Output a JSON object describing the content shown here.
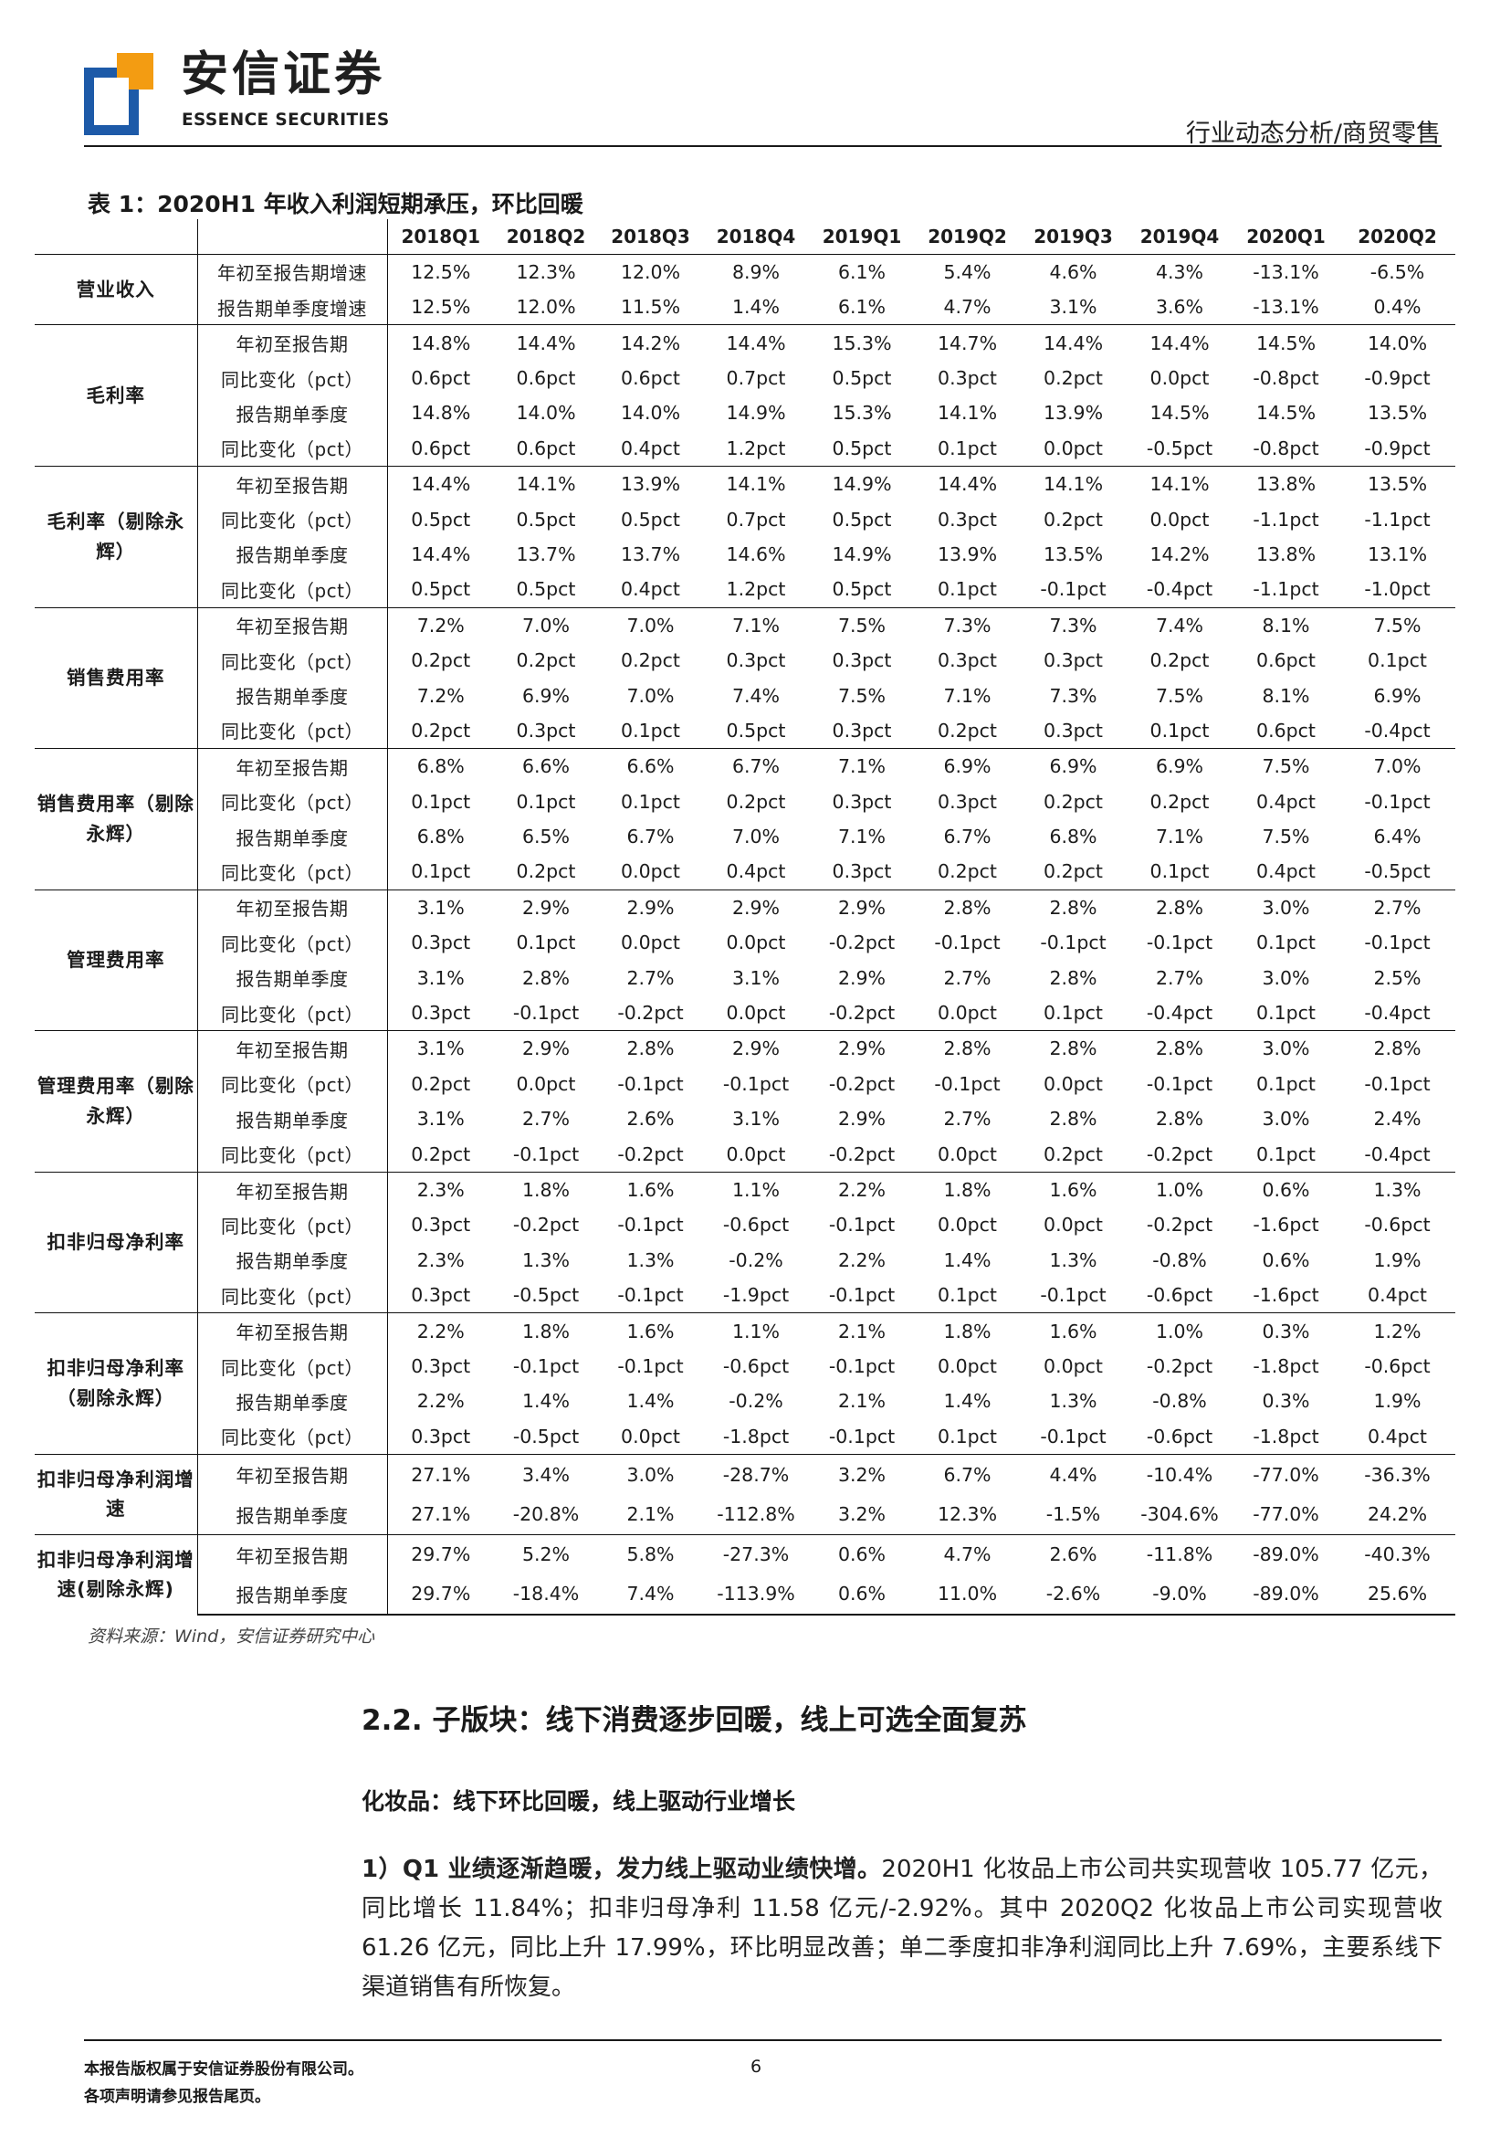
{
  "header": {
    "brand_cn": "安信证券",
    "brand_en": "ESSENCE SECURITIES",
    "report_type": "行业动态分析/商贸零售",
    "brand_colors": {
      "orange": "#f39c12",
      "blue": "#1d5aa8"
    }
  },
  "table": {
    "title": "表 1：2020H1 年收入利润短期承压，环比回暖",
    "columns": [
      "2018Q1",
      "2018Q2",
      "2018Q3",
      "2018Q4",
      "2019Q1",
      "2019Q2",
      "2019Q3",
      "2019Q4",
      "2020Q1",
      "2020Q2"
    ],
    "groups": [
      {
        "metric": "营业收入",
        "rows": [
          {
            "label": "年初至报告期增速",
            "values": [
              "12.5%",
              "12.3%",
              "12.0%",
              "8.9%",
              "6.1%",
              "5.4%",
              "4.6%",
              "4.3%",
              "-13.1%",
              "-6.5%"
            ]
          },
          {
            "label": "报告期单季度增速",
            "values": [
              "12.5%",
              "12.0%",
              "11.5%",
              "1.4%",
              "6.1%",
              "4.7%",
              "3.1%",
              "3.6%",
              "-13.1%",
              "0.4%"
            ]
          }
        ]
      },
      {
        "metric": "毛利率",
        "rows": [
          {
            "label": "年初至报告期",
            "values": [
              "14.8%",
              "14.4%",
              "14.2%",
              "14.4%",
              "15.3%",
              "14.7%",
              "14.4%",
              "14.4%",
              "14.5%",
              "14.0%"
            ]
          },
          {
            "label": "同比变化（pct）",
            "values": [
              "0.6pct",
              "0.6pct",
              "0.6pct",
              "0.7pct",
              "0.5pct",
              "0.3pct",
              "0.2pct",
              "0.0pct",
              "-0.8pct",
              "-0.9pct"
            ]
          },
          {
            "label": "报告期单季度",
            "values": [
              "14.8%",
              "14.0%",
              "14.0%",
              "14.9%",
              "15.3%",
              "14.1%",
              "13.9%",
              "14.5%",
              "14.5%",
              "13.5%"
            ]
          },
          {
            "label": "同比变化（pct）",
            "values": [
              "0.6pct",
              "0.6pct",
              "0.4pct",
              "1.2pct",
              "0.5pct",
              "0.1pct",
              "0.0pct",
              "-0.5pct",
              "-0.8pct",
              "-0.9pct"
            ]
          }
        ]
      },
      {
        "metric": "毛利率（剔除永辉）",
        "rows": [
          {
            "label": "年初至报告期",
            "values": [
              "14.4%",
              "14.1%",
              "13.9%",
              "14.1%",
              "14.9%",
              "14.4%",
              "14.1%",
              "14.1%",
              "13.8%",
              "13.5%"
            ]
          },
          {
            "label": "同比变化（pct）",
            "values": [
              "0.5pct",
              "0.5pct",
              "0.5pct",
              "0.7pct",
              "0.5pct",
              "0.3pct",
              "0.2pct",
              "0.0pct",
              "-1.1pct",
              "-1.1pct"
            ]
          },
          {
            "label": "报告期单季度",
            "values": [
              "14.4%",
              "13.7%",
              "13.7%",
              "14.6%",
              "14.9%",
              "13.9%",
              "13.5%",
              "14.2%",
              "13.8%",
              "13.1%"
            ]
          },
          {
            "label": "同比变化（pct）",
            "values": [
              "0.5pct",
              "0.5pct",
              "0.4pct",
              "1.2pct",
              "0.5pct",
              "0.1pct",
              "-0.1pct",
              "-0.4pct",
              "-1.1pct",
              "-1.0pct"
            ]
          }
        ]
      },
      {
        "metric": "销售费用率",
        "rows": [
          {
            "label": "年初至报告期",
            "values": [
              "7.2%",
              "7.0%",
              "7.0%",
              "7.1%",
              "7.5%",
              "7.3%",
              "7.3%",
              "7.4%",
              "8.1%",
              "7.5%"
            ]
          },
          {
            "label": "同比变化（pct）",
            "values": [
              "0.2pct",
              "0.2pct",
              "0.2pct",
              "0.3pct",
              "0.3pct",
              "0.3pct",
              "0.3pct",
              "0.2pct",
              "0.6pct",
              "0.1pct"
            ]
          },
          {
            "label": "报告期单季度",
            "values": [
              "7.2%",
              "6.9%",
              "7.0%",
              "7.4%",
              "7.5%",
              "7.1%",
              "7.3%",
              "7.5%",
              "8.1%",
              "6.9%"
            ]
          },
          {
            "label": "同比变化（pct）",
            "values": [
              "0.2pct",
              "0.3pct",
              "0.1pct",
              "0.5pct",
              "0.3pct",
              "0.2pct",
              "0.3pct",
              "0.1pct",
              "0.6pct",
              "-0.4pct"
            ]
          }
        ]
      },
      {
        "metric": "销售费用率（剔除永辉）",
        "rows": [
          {
            "label": "年初至报告期",
            "values": [
              "6.8%",
              "6.6%",
              "6.6%",
              "6.7%",
              "7.1%",
              "6.9%",
              "6.9%",
              "6.9%",
              "7.5%",
              "7.0%"
            ]
          },
          {
            "label": "同比变化（pct）",
            "values": [
              "0.1pct",
              "0.1pct",
              "0.1pct",
              "0.2pct",
              "0.3pct",
              "0.3pct",
              "0.2pct",
              "0.2pct",
              "0.4pct",
              "-0.1pct"
            ]
          },
          {
            "label": "报告期单季度",
            "values": [
              "6.8%",
              "6.5%",
              "6.7%",
              "7.0%",
              "7.1%",
              "6.7%",
              "6.8%",
              "7.1%",
              "7.5%",
              "6.4%"
            ]
          },
          {
            "label": "同比变化（pct）",
            "values": [
              "0.1pct",
              "0.2pct",
              "0.0pct",
              "0.4pct",
              "0.3pct",
              "0.2pct",
              "0.2pct",
              "0.1pct",
              "0.4pct",
              "-0.5pct"
            ]
          }
        ]
      },
      {
        "metric": "管理费用率",
        "rows": [
          {
            "label": "年初至报告期",
            "values": [
              "3.1%",
              "2.9%",
              "2.9%",
              "2.9%",
              "2.9%",
              "2.8%",
              "2.8%",
              "2.8%",
              "3.0%",
              "2.7%"
            ]
          },
          {
            "label": "同比变化（pct）",
            "values": [
              "0.3pct",
              "0.1pct",
              "0.0pct",
              "0.0pct",
              "-0.2pct",
              "-0.1pct",
              "-0.1pct",
              "-0.1pct",
              "0.1pct",
              "-0.1pct"
            ]
          },
          {
            "label": "报告期单季度",
            "values": [
              "3.1%",
              "2.8%",
              "2.7%",
              "3.1%",
              "2.9%",
              "2.7%",
              "2.8%",
              "2.7%",
              "3.0%",
              "2.5%"
            ]
          },
          {
            "label": "同比变化（pct）",
            "values": [
              "0.3pct",
              "-0.1pct",
              "-0.2pct",
              "0.0pct",
              "-0.2pct",
              "0.0pct",
              "0.1pct",
              "-0.4pct",
              "0.1pct",
              "-0.4pct"
            ]
          }
        ]
      },
      {
        "metric": "管理费用率（剔除永辉）",
        "rows": [
          {
            "label": "年初至报告期",
            "values": [
              "3.1%",
              "2.9%",
              "2.8%",
              "2.9%",
              "2.9%",
              "2.8%",
              "2.8%",
              "2.8%",
              "3.0%",
              "2.8%"
            ]
          },
          {
            "label": "同比变化（pct）",
            "values": [
              "0.2pct",
              "0.0pct",
              "-0.1pct",
              "-0.1pct",
              "-0.2pct",
              "-0.1pct",
              "0.0pct",
              "-0.1pct",
              "0.1pct",
              "-0.1pct"
            ]
          },
          {
            "label": "报告期单季度",
            "values": [
              "3.1%",
              "2.7%",
              "2.6%",
              "3.1%",
              "2.9%",
              "2.7%",
              "2.8%",
              "2.8%",
              "3.0%",
              "2.4%"
            ]
          },
          {
            "label": "同比变化（pct）",
            "values": [
              "0.2pct",
              "-0.1pct",
              "-0.2pct",
              "0.0pct",
              "-0.2pct",
              "0.0pct",
              "0.2pct",
              "-0.2pct",
              "0.1pct",
              "-0.4pct"
            ]
          }
        ]
      },
      {
        "metric": "扣非归母净利率",
        "rows": [
          {
            "label": "年初至报告期",
            "values": [
              "2.3%",
              "1.8%",
              "1.6%",
              "1.1%",
              "2.2%",
              "1.8%",
              "1.6%",
              "1.0%",
              "0.6%",
              "1.3%"
            ]
          },
          {
            "label": "同比变化（pct）",
            "values": [
              "0.3pct",
              "-0.2pct",
              "-0.1pct",
              "-0.6pct",
              "-0.1pct",
              "0.0pct",
              "0.0pct",
              "-0.2pct",
              "-1.6pct",
              "-0.6pct"
            ]
          },
          {
            "label": "报告期单季度",
            "values": [
              "2.3%",
              "1.3%",
              "1.3%",
              "-0.2%",
              "2.2%",
              "1.4%",
              "1.3%",
              "-0.8%",
              "0.6%",
              "1.9%"
            ]
          },
          {
            "label": "同比变化（pct）",
            "values": [
              "0.3pct",
              "-0.5pct",
              "-0.1pct",
              "-1.9pct",
              "-0.1pct",
              "0.1pct",
              "-0.1pct",
              "-0.6pct",
              "-1.6pct",
              "0.4pct"
            ]
          }
        ]
      },
      {
        "metric": "扣非归母净利率（剔除永辉）",
        "rows": [
          {
            "label": "年初至报告期",
            "values": [
              "2.2%",
              "1.8%",
              "1.6%",
              "1.1%",
              "2.1%",
              "1.8%",
              "1.6%",
              "1.0%",
              "0.3%",
              "1.2%"
            ]
          },
          {
            "label": "同比变化（pct）",
            "values": [
              "0.3pct",
              "-0.1pct",
              "-0.1pct",
              "-0.6pct",
              "-0.1pct",
              "0.0pct",
              "0.0pct",
              "-0.2pct",
              "-1.8pct",
              "-0.6pct"
            ]
          },
          {
            "label": "报告期单季度",
            "values": [
              "2.2%",
              "1.4%",
              "1.4%",
              "-0.2%",
              "2.1%",
              "1.4%",
              "1.3%",
              "-0.8%",
              "0.3%",
              "1.9%"
            ]
          },
          {
            "label": "同比变化（pct）",
            "values": [
              "0.3pct",
              "-0.5pct",
              "0.0pct",
              "-1.8pct",
              "-0.1pct",
              "0.1pct",
              "-0.1pct",
              "-0.6pct",
              "-1.8pct",
              "0.4pct"
            ]
          }
        ]
      },
      {
        "metric": "扣非归母净利润增速",
        "rows": [
          {
            "label": "年初至报告期",
            "values": [
              "27.1%",
              "3.4%",
              "3.0%",
              "-28.7%",
              "3.2%",
              "6.7%",
              "4.4%",
              "-10.4%",
              "-77.0%",
              "-36.3%"
            ]
          },
          {
            "label": "报告期单季度",
            "values": [
              "27.1%",
              "-20.8%",
              "2.1%",
              "-112.8%",
              "3.2%",
              "12.3%",
              "-1.5%",
              "-304.6%",
              "-77.0%",
              "24.2%"
            ]
          }
        ]
      },
      {
        "metric": "扣非归母净利润增速(剔除永辉)",
        "rows": [
          {
            "label": "年初至报告期",
            "values": [
              "29.7%",
              "5.2%",
              "5.8%",
              "-27.3%",
              "0.6%",
              "4.7%",
              "2.6%",
              "-11.8%",
              "-89.0%",
              "-40.3%"
            ]
          },
          {
            "label": "报告期单季度",
            "values": [
              "29.7%",
              "-18.4%",
              "7.4%",
              "-113.9%",
              "0.6%",
              "11.0%",
              "-2.6%",
              "-9.0%",
              "-89.0%",
              "25.6%"
            ]
          }
        ]
      }
    ],
    "source": "资料来源：Wind，安信证券研究中心"
  },
  "section": {
    "heading": "2.2. 子版块：线下消费逐步回暖，线上可选全面复苏",
    "subheading": "化妆品：线下环比回暖，线上驱动行业增长",
    "paragraph_lead": "1）Q1 业绩逐渐趋暖，发力线上驱动业绩快增。",
    "paragraph_body": "2020H1 化妆品上市公司共实现营收 105.77 亿元，同比增长 11.84%；扣非归母净利 11.58 亿元/-2.92%。其中 2020Q2 化妆品上市公司实现营收 61.26 亿元，同比上升 17.99%，环比明显改善；单二季度扣非净利润同比上升 7.69%，主要系线下渠道销售有所恢复。"
  },
  "footer": {
    "copyright": "本报告版权属于安信证券股份有限公司。",
    "disclaimer": "各项声明请参见报告尾页。",
    "page_number": "6"
  }
}
